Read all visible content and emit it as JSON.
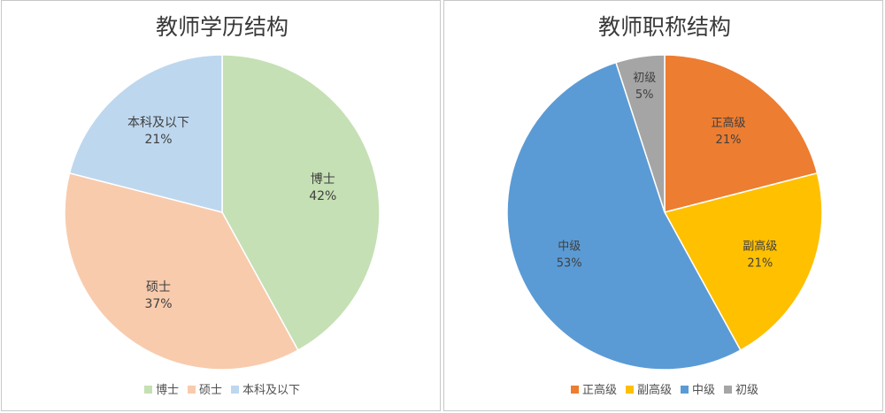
{
  "chart_data": [
    {
      "type": "pie",
      "title": "教师学历结构",
      "categories": [
        "博士",
        "硕士",
        "本科及以下"
      ],
      "values": [
        42,
        37,
        21
      ],
      "data_labels": [
        "42%",
        "37%",
        "21%"
      ],
      "colors": [
        "#c5e0b4",
        "#f8cbad",
        "#bdd7ee"
      ],
      "legend_position": "bottom"
    },
    {
      "type": "pie",
      "title": "教师职称结构",
      "categories": [
        "正高级",
        "副高级",
        "中级",
        "初级"
      ],
      "values": [
        21,
        21,
        53,
        5
      ],
      "data_labels": [
        "21%",
        "21%",
        "53%",
        "5%"
      ],
      "colors": [
        "#ed7d31",
        "#ffc000",
        "#5b9bd5",
        "#a5a5a5"
      ],
      "legend_position": "bottom"
    }
  ]
}
